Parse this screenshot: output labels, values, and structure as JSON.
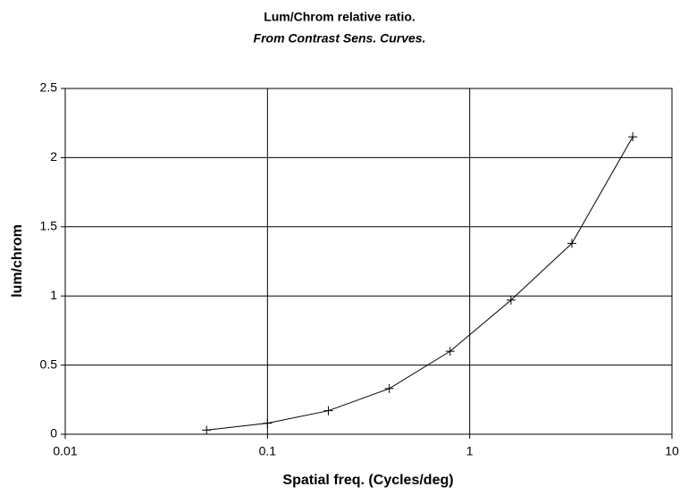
{
  "chart_data": {
    "type": "line",
    "title": "Lum/Chrom relative ratio.",
    "subtitle": "From Contrast Sens. Curves.",
    "x_label": "Spatial freq. (Cycles/deg)",
    "y_label": "lum/chrom",
    "x": [
      0.05,
      0.1,
      0.2,
      0.4,
      0.8,
      1.6,
      3.2,
      6.4
    ],
    "series": [
      {
        "name": "lum/chrom",
        "color": "#000000",
        "values": [
          0.03,
          0.08,
          0.17,
          0.33,
          0.6,
          0.97,
          1.38,
          2.15
        ]
      }
    ],
    "x_log": true,
    "xlim": [
      0.01,
      10
    ],
    "xticks": [
      0.01,
      0.1,
      1,
      10
    ],
    "ylim": [
      0,
      2.5
    ],
    "yticks": [
      0,
      0.5,
      1,
      1.5,
      2,
      2.5
    ],
    "grid": true,
    "marker": "plus"
  }
}
